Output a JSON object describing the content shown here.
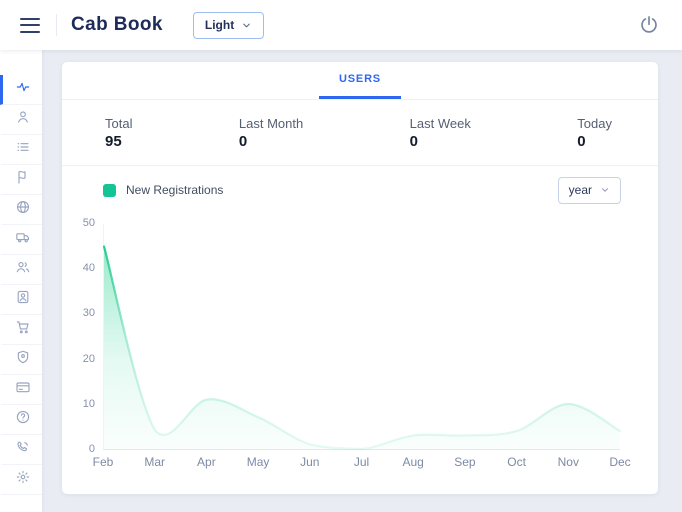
{
  "header": {
    "title": "Cab Book",
    "theme_selector": {
      "value": "Light"
    },
    "power_label": "logout"
  },
  "sidebar": {
    "active_index": 0,
    "items": [
      {
        "name": "dashboard",
        "icon": "activity-icon",
        "active": true
      },
      {
        "name": "users",
        "icon": "user-icon",
        "active": false
      },
      {
        "name": "rides-list",
        "icon": "list-icon",
        "active": false
      },
      {
        "name": "reports",
        "icon": "flag-icon",
        "active": false
      },
      {
        "name": "regions",
        "icon": "globe-icon",
        "active": false
      },
      {
        "name": "vehicles",
        "icon": "truck-icon",
        "active": false
      },
      {
        "name": "drivers",
        "icon": "users-icon",
        "active": false
      },
      {
        "name": "profile",
        "icon": "user-badge-icon",
        "active": false
      },
      {
        "name": "orders",
        "icon": "cart-icon",
        "active": false
      },
      {
        "name": "security",
        "icon": "shield-icon",
        "active": false
      },
      {
        "name": "payments",
        "icon": "credit-card-icon",
        "active": false
      },
      {
        "name": "help",
        "icon": "help-icon",
        "active": false
      },
      {
        "name": "support",
        "icon": "phone-icon",
        "active": false
      },
      {
        "name": "settings",
        "icon": "gear-icon",
        "active": false
      }
    ]
  },
  "tabs": [
    {
      "label": "USERS",
      "active": true
    }
  ],
  "stats": [
    {
      "label": "Total",
      "value": "95"
    },
    {
      "label": "Last Month",
      "value": "0"
    },
    {
      "label": "Last Week",
      "value": "0"
    },
    {
      "label": "Today",
      "value": "0"
    }
  ],
  "chart": {
    "legend": "New Registrations",
    "range_selector": "year",
    "accent_green": "#13c495",
    "accent_blue": "#2e68f0"
  },
  "chart_data": {
    "type": "area",
    "title": "New Registrations by month",
    "categories": [
      "Feb",
      "Mar",
      "Apr",
      "May",
      "Jun",
      "Jul",
      "Aug",
      "Sep",
      "Oct",
      "Nov",
      "Dec"
    ],
    "series": [
      {
        "name": "New Registrations",
        "values": [
          45,
          4,
          11,
          7,
          1,
          0,
          3,
          3,
          4,
          10,
          4
        ]
      }
    ],
    "xlabel": "",
    "ylabel": "",
    "y_ticks": [
      0,
      10,
      20,
      30,
      40,
      50
    ],
    "ylim": [
      0,
      50
    ],
    "grid": false,
    "legend_position": "top-left"
  }
}
